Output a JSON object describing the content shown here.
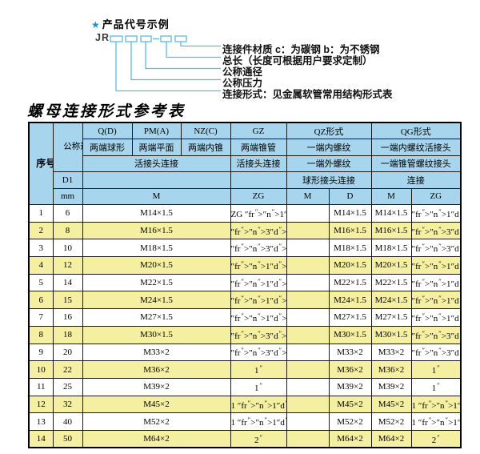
{
  "colors": {
    "header_bg": "#A7D5EE",
    "row_stripe_yellow": "#F5EFA1",
    "diagram_line_blue": "#5FB7E0",
    "star_blue": "#1E8FD0",
    "border": "#1a1a1a"
  },
  "diagram": {
    "star": "★",
    "title": "产品代号示例",
    "prefix": "JR",
    "labels": [
      "连接件材质  c：为碳钢  b：为不锈钢",
      "总长（长度可根据用户要求定制）",
      "公称通径",
      "公称压力",
      "连接形式：见金属软管常用结构形式表"
    ]
  },
  "table": {
    "title": "螺母连接形式参考表",
    "header": {
      "seq": "序号",
      "dn": "公称通径",
      "d1": "D1",
      "mm": "mm",
      "q": "Q(D)",
      "q_desc": "两端球形",
      "pm": "PM(A)",
      "pm_desc": "两端平面",
      "nz": "NZ(C)",
      "nz_desc": "两端内锥",
      "gz": "GZ",
      "gz_desc": "两端锥管",
      "gz_conn": "活接头连接",
      "union_conn": "活接头连接",
      "qz": "QZ形式",
      "qz_row2": "一端内螺纹",
      "qz_row3": "一端外螺纹",
      "qz_row4": "球形接头连接",
      "qg": "QG形式",
      "qg_row2": "一端内螺纹活接头",
      "qg_row3": "一端锥管螺纹接头",
      "qg_row4": "连接",
      "m": "M",
      "zg": "ZG",
      "qz_m": "M",
      "qz_d": "D",
      "qg_m": "M",
      "qg_zg": "ZG"
    },
    "rows": [
      {
        "seq": "1",
        "mm": "6",
        "m": "M14×1.5",
        "zg": "ZG 1/4\"",
        "qz_m": "",
        "qz_d": "M14×1.5",
        "qg_m": "M14×1.5",
        "qg_zg": "1/4\""
      },
      {
        "seq": "2",
        "mm": "8",
        "m": "M16×1.5",
        "zg": "3/8\"",
        "qz_m": "",
        "qz_d": "M16×1.5",
        "qg_m": "M16×1.5",
        "qg_zg": "3/8\""
      },
      {
        "seq": "3",
        "mm": "10",
        "m": "M18×1.5",
        "zg": "3/8\"",
        "qz_m": "",
        "qz_d": "M18×1.5",
        "qg_m": "M18×1.5",
        "qg_zg": "3/8\""
      },
      {
        "seq": "4",
        "mm": "12",
        "m": "M20×1.5",
        "zg": "1/2\"",
        "qz_m": "",
        "qz_d": "M20×1.5",
        "qg_m": "M20×1.5",
        "qg_zg": "1/2\""
      },
      {
        "seq": "5",
        "mm": "14",
        "m": "M22×1.5",
        "zg": "1/2\"",
        "qz_m": "",
        "qz_d": "M22×1.5",
        "qg_m": "M22×1.5",
        "qg_zg": "1/2\""
      },
      {
        "seq": "6",
        "mm": "15",
        "m": "M24×1.5",
        "zg": "1/2\"",
        "qz_m": "",
        "qz_d": "M24×1.5",
        "qg_m": "M24×1.5",
        "qg_zg": "1/2\""
      },
      {
        "seq": "7",
        "mm": "16",
        "m": "M27×1.5",
        "zg": "1/2\"",
        "qz_m": "",
        "qz_d": "M27×1.5",
        "qg_m": "M27×1.5",
        "qg_zg": "1/2\""
      },
      {
        "seq": "8",
        "mm": "18",
        "m": "M30×1.5",
        "zg": "3/4\"",
        "qz_m": "",
        "qz_d": "M30×1.5",
        "qg_m": "M30×1.5",
        "qg_zg": "3/4\""
      },
      {
        "seq": "9",
        "mm": "20",
        "m": "M33×2",
        "zg": "3/4\"",
        "qz_m": "",
        "qz_d": "M33×2",
        "qg_m": "M33×2",
        "qg_zg": "3/4\""
      },
      {
        "seq": "10",
        "mm": "22",
        "m": "M36×2",
        "zg": "1\"",
        "qz_m": "",
        "qz_d": "M36×2",
        "qg_m": "M36×2",
        "qg_zg": "1\""
      },
      {
        "seq": "11",
        "mm": "25",
        "m": "M39×2",
        "zg": "1\"",
        "qz_m": "",
        "qz_d": "M39×2",
        "qg_m": "M39×2",
        "qg_zg": "1\""
      },
      {
        "seq": "12",
        "mm": "32",
        "m": "M45×2",
        "zg": "1 1/4\"",
        "qz_m": "",
        "qz_d": "M45×2",
        "qg_m": "M45×2",
        "qg_zg": "1 1/4\""
      },
      {
        "seq": "13",
        "mm": "40",
        "m": "M52×2",
        "zg": "1 1/2\"",
        "qz_m": "",
        "qz_d": "M52×2",
        "qg_m": "M52×2",
        "qg_zg": "1 1/2\""
      },
      {
        "seq": "14",
        "mm": "50",
        "m": "M64×2",
        "zg": "2\"",
        "qz_m": "",
        "qz_d": "M64×2",
        "qg_m": "M64×2",
        "qg_zg": "2\""
      }
    ]
  }
}
